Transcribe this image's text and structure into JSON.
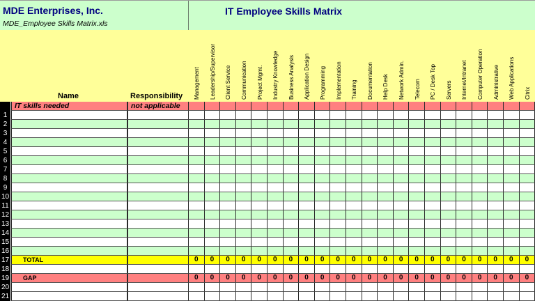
{
  "header": {
    "company": "MDE Enterprises, Inc.",
    "file_name": "MDE_Employee Skills Matrix.xls",
    "title": "IT Employee Skills Matrix"
  },
  "columns": {
    "name": "Name",
    "responsibility": "Responsibility",
    "skills": [
      "Management",
      "Leadership/Supervisor",
      "Client Service",
      "Communication",
      "Project Mgmt.",
      "Industry Knowledge",
      "Business Analysis",
      "Application Design",
      "Programming",
      "Implementation",
      "Training",
      "Documentation",
      "Help Desk",
      "Network Admin.",
      "Telecom",
      "PC / Desk Top",
      "Servers",
      "Internet/Intranet",
      "Computer Operation",
      "Administrative",
      "Web Applications",
      "Citrix"
    ]
  },
  "needed_row": {
    "name": "IT skills needed",
    "responsibility": "not applicable"
  },
  "rows": [
    {
      "num": "1"
    },
    {
      "num": "2"
    },
    {
      "num": "3"
    },
    {
      "num": "4"
    },
    {
      "num": "5"
    },
    {
      "num": "6"
    },
    {
      "num": "7"
    },
    {
      "num": "8"
    },
    {
      "num": "9"
    },
    {
      "num": "10"
    },
    {
      "num": "11"
    },
    {
      "num": "12"
    },
    {
      "num": "13"
    },
    {
      "num": "14"
    },
    {
      "num": "15"
    },
    {
      "num": "16"
    }
  ],
  "total_row": {
    "num": "17",
    "label": "TOTAL",
    "values": [
      "0",
      "0",
      "0",
      "0",
      "0",
      "0",
      "0",
      "0",
      "0",
      "0",
      "0",
      "0",
      "0",
      "0",
      "0",
      "0",
      "0",
      "0",
      "0",
      "0",
      "0",
      "0"
    ]
  },
  "blank_row_18": {
    "num": "18"
  },
  "gap_row": {
    "num": "19",
    "label": "GAP",
    "values": [
      "0",
      "0",
      "0",
      "0",
      "0",
      "0",
      "0",
      "0",
      "0",
      "0",
      "0",
      "0",
      "0",
      "0",
      "0",
      "0",
      "0",
      "0",
      "0",
      "0",
      "0",
      "0"
    ]
  },
  "trailing_rows": [
    {
      "num": "20"
    },
    {
      "num": "21"
    }
  ],
  "colors": {
    "title_bg": "#ccffcc",
    "title_text": "#000080",
    "header_bg": "#ffff99",
    "needed_row": "#ff8080",
    "total_row": "#ffff00",
    "gap_row": "#ff8080",
    "alt_row": "#ccffcc"
  }
}
